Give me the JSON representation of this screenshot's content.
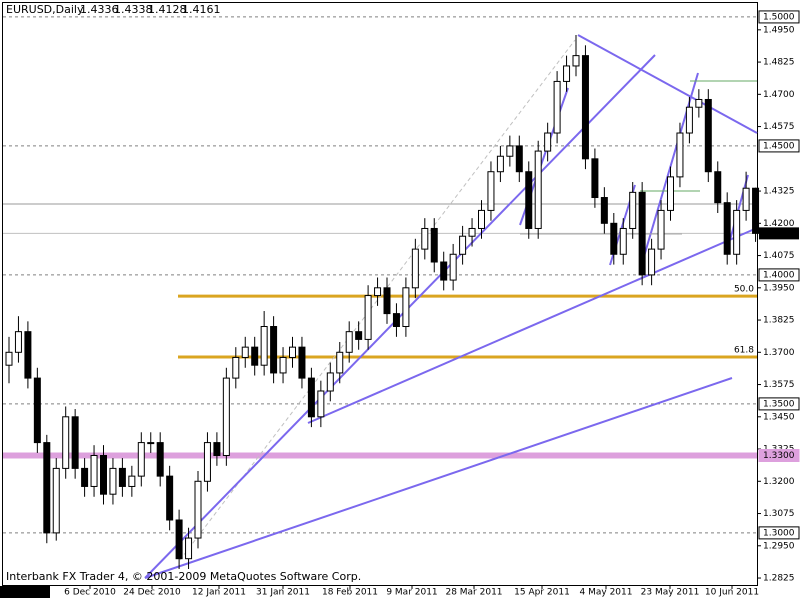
{
  "chart_data": {
    "type": "candlestick",
    "title": "EURUSD,Daily",
    "header_values": [
      1.4336,
      1.4338,
      1.4128,
      1.4161
    ],
    "footer": "Interbank FX Trader 4, © 2001-2009 MetaQuotes Software Corp.",
    "x_labels": [
      "11.19 0:00",
      "6 Dec 2010",
      "24 Dec 2010",
      "12 Jan 2011",
      "31 Jan 2011",
      "18 Feb 2011",
      "9 Mar 2011",
      "28 Mar 2011",
      "15 Apr 2011",
      "4 May 2011",
      "23 May 2011",
      "10 Jun 2011"
    ],
    "ylim": [
      1.2798,
      1.5054
    ],
    "yticks": [
      {
        "value": 1.495,
        "label": "1.4950"
      },
      {
        "value": 1.4825,
        "label": "1.4825"
      },
      {
        "value": 1.47,
        "label": "1.4700"
      },
      {
        "value": 1.4575,
        "label": "1.4575"
      },
      {
        "value": 1.4325,
        "label": "1.4325"
      },
      {
        "value": 1.42,
        "label": "1.4200"
      },
      {
        "value": 1.4075,
        "label": "1.4075"
      },
      {
        "value": 1.395,
        "label": "1.3950"
      },
      {
        "value": 1.3825,
        "label": "1.3825"
      },
      {
        "value": 1.37,
        "label": "1.3700"
      },
      {
        "value": 1.3575,
        "label": "1.3575"
      },
      {
        "value": 1.345,
        "label": "1.3450"
      },
      {
        "value": 1.3325,
        "label": "1.3325"
      },
      {
        "value": 1.32,
        "label": "1.3200"
      },
      {
        "value": 1.3075,
        "label": "1.3075"
      },
      {
        "value": 1.295,
        "label": "1.2950"
      },
      {
        "value": 1.2825,
        "label": "1.2825"
      }
    ],
    "levels": [
      {
        "value": 1.5,
        "label": "1.5000",
        "color": "#808080"
      },
      {
        "value": 1.45,
        "label": "1.4500",
        "color": "#808080"
      },
      {
        "value": 1.4,
        "label": "1.4000",
        "color": "#808080"
      },
      {
        "value": 1.35,
        "label": "1.3500",
        "color": "#808080"
      },
      {
        "value": 1.33,
        "label": "1.3300",
        "color": "#dda0dd"
      },
      {
        "value": 1.3,
        "label": "1.3000",
        "color": "#808080"
      }
    ],
    "current_price": {
      "value": 1.4161,
      "label": "1.4161"
    },
    "fibonacci": [
      {
        "value": 1.3918,
        "label": "50.0"
      },
      {
        "value": 1.3682,
        "label": "61.8"
      }
    ],
    "fib_color": "#daa520",
    "hline": 1.4275,
    "series": {
      "open": [
        1.365,
        1.37,
        1.378,
        1.36,
        1.335,
        1.3,
        1.325,
        1.345,
        1.325,
        1.318,
        1.33,
        1.315,
        1.325,
        1.318,
        1.322,
        1.335,
        1.335,
        1.322,
        1.305,
        1.29,
        1.298,
        1.32,
        1.335,
        1.33,
        1.36,
        1.368,
        1.372,
        1.365,
        1.38,
        1.362,
        1.368,
        1.372,
        1.36,
        1.345,
        1.355,
        1.362,
        1.37,
        1.378,
        1.375,
        1.392,
        1.395,
        1.385,
        1.38,
        1.395,
        1.41,
        1.418,
        1.405,
        1.398,
        1.408,
        1.415,
        1.418,
        1.425,
        1.44,
        1.446,
        1.45,
        1.44,
        1.418,
        1.448,
        1.455,
        1.475,
        1.481,
        1.485,
        1.445,
        1.43,
        1.42,
        1.408,
        1.418,
        1.432,
        1.4,
        1.41,
        1.425,
        1.438,
        1.455,
        1.465,
        1.468,
        1.44,
        1.428,
        1.408,
        1.425,
        1.4336
      ],
      "high": [
        1.376,
        1.384,
        1.382,
        1.364,
        1.338,
        1.329,
        1.349,
        1.348,
        1.329,
        1.334,
        1.334,
        1.329,
        1.329,
        1.326,
        1.339,
        1.339,
        1.339,
        1.326,
        1.309,
        1.302,
        1.324,
        1.339,
        1.339,
        1.364,
        1.372,
        1.376,
        1.376,
        1.386,
        1.384,
        1.372,
        1.376,
        1.376,
        1.364,
        1.359,
        1.366,
        1.374,
        1.382,
        1.382,
        1.396,
        1.399,
        1.399,
        1.389,
        1.399,
        1.414,
        1.422,
        1.422,
        1.409,
        1.412,
        1.419,
        1.422,
        1.429,
        1.444,
        1.45,
        1.454,
        1.454,
        1.444,
        1.452,
        1.459,
        1.479,
        1.485,
        1.493,
        1.489,
        1.449,
        1.434,
        1.424,
        1.422,
        1.436,
        1.436,
        1.414,
        1.429,
        1.442,
        1.459,
        1.469,
        1.472,
        1.472,
        1.444,
        1.432,
        1.429,
        1.44,
        1.4338
      ],
      "low": [
        1.358,
        1.366,
        1.356,
        1.331,
        1.296,
        1.297,
        1.321,
        1.321,
        1.314,
        1.314,
        1.311,
        1.311,
        1.314,
        1.314,
        1.318,
        1.331,
        1.318,
        1.301,
        1.286,
        1.286,
        1.294,
        1.316,
        1.326,
        1.326,
        1.356,
        1.364,
        1.361,
        1.361,
        1.358,
        1.358,
        1.364,
        1.356,
        1.341,
        1.341,
        1.351,
        1.358,
        1.366,
        1.371,
        1.371,
        1.388,
        1.381,
        1.376,
        1.376,
        1.391,
        1.406,
        1.401,
        1.394,
        1.394,
        1.404,
        1.411,
        1.414,
        1.421,
        1.436,
        1.442,
        1.436,
        1.414,
        1.414,
        1.444,
        1.451,
        1.471,
        1.477,
        1.441,
        1.426,
        1.416,
        1.404,
        1.404,
        1.414,
        1.396,
        1.396,
        1.406,
        1.421,
        1.434,
        1.451,
        1.461,
        1.436,
        1.424,
        1.404,
        1.404,
        1.421,
        1.4128
      ],
      "close": [
        1.37,
        1.378,
        1.36,
        1.335,
        1.3,
        1.325,
        1.345,
        1.325,
        1.318,
        1.33,
        1.315,
        1.325,
        1.318,
        1.322,
        1.335,
        1.335,
        1.322,
        1.305,
        1.29,
        1.298,
        1.32,
        1.335,
        1.33,
        1.36,
        1.368,
        1.372,
        1.365,
        1.38,
        1.362,
        1.368,
        1.372,
        1.36,
        1.345,
        1.355,
        1.362,
        1.37,
        1.378,
        1.375,
        1.392,
        1.395,
        1.385,
        1.38,
        1.395,
        1.41,
        1.418,
        1.405,
        1.398,
        1.408,
        1.415,
        1.418,
        1.425,
        1.44,
        1.446,
        1.45,
        1.44,
        1.418,
        1.448,
        1.455,
        1.475,
        1.481,
        1.485,
        1.445,
        1.43,
        1.42,
        1.408,
        1.418,
        1.432,
        1.4,
        1.41,
        1.425,
        1.438,
        1.455,
        1.465,
        1.468,
        1.44,
        1.428,
        1.408,
        1.425,
        1.4336,
        1.4161
      ]
    }
  }
}
